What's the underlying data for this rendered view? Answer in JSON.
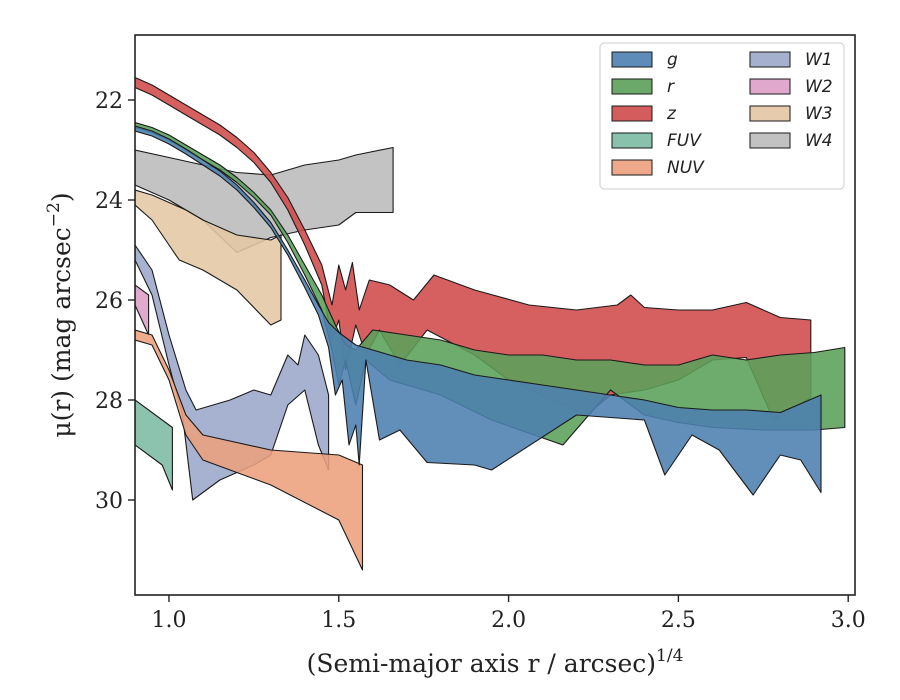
{
  "chart_data": {
    "type": "area",
    "title": "",
    "xlabel": "(Semi-major axis r / arcsec)",
    "xlabel_exponent": "1/4",
    "ylabel_prefix": "μ(r) (mag arcsec",
    "ylabel_exponent": "−2",
    "ylabel_suffix": ")",
    "xlim": [
      0.9,
      3.02
    ],
    "ylim": [
      31.9,
      20.7
    ],
    "y_inverted": true,
    "xticks": [
      1.0,
      1.5,
      2.0,
      2.5,
      3.0
    ],
    "xtick_labels": [
      "1.0",
      "1.5",
      "2.0",
      "2.5",
      "3.0"
    ],
    "yticks": [
      22,
      24,
      26,
      28,
      30
    ],
    "ytick_labels": [
      "22",
      "24",
      "26",
      "28",
      "30"
    ],
    "legend_position": "upper right",
    "legend_entries": [
      "g",
      "r",
      "z",
      "FUV",
      "NUV",
      "W1",
      "W2",
      "W3",
      "W4"
    ],
    "series": [
      {
        "name": "g",
        "color": "#4c7fb0",
        "upper": [
          [
            0.9,
            22.52
          ],
          [
            0.95,
            22.62
          ],
          [
            1.0,
            22.78
          ],
          [
            1.05,
            22.98
          ],
          [
            1.1,
            23.2
          ],
          [
            1.15,
            23.42
          ],
          [
            1.2,
            23.7
          ],
          [
            1.25,
            24.05
          ],
          [
            1.3,
            24.45
          ],
          [
            1.35,
            25.0
          ],
          [
            1.4,
            25.6
          ],
          [
            1.44,
            26.1
          ],
          [
            1.47,
            26.45
          ],
          [
            1.5,
            26.65
          ],
          [
            1.55,
            26.9
          ],
          [
            1.6,
            27.0
          ],
          [
            1.7,
            27.2
          ],
          [
            1.8,
            27.3
          ],
          [
            1.9,
            27.5
          ],
          [
            2.0,
            27.6
          ],
          [
            2.1,
            27.7
          ],
          [
            2.2,
            27.8
          ],
          [
            2.3,
            27.9
          ],
          [
            2.4,
            28.0
          ],
          [
            2.5,
            28.15
          ],
          [
            2.6,
            28.2
          ],
          [
            2.7,
            28.2
          ],
          [
            2.8,
            28.25
          ],
          [
            2.92,
            27.9
          ]
        ],
        "lower": [
          [
            0.9,
            22.62
          ],
          [
            0.95,
            22.72
          ],
          [
            1.0,
            22.88
          ],
          [
            1.05,
            23.08
          ],
          [
            1.1,
            23.3
          ],
          [
            1.15,
            23.52
          ],
          [
            1.2,
            23.8
          ],
          [
            1.25,
            24.15
          ],
          [
            1.3,
            24.55
          ],
          [
            1.35,
            25.1
          ],
          [
            1.4,
            25.75
          ],
          [
            1.44,
            26.3
          ],
          [
            1.47,
            26.95
          ],
          [
            1.49,
            27.9
          ],
          [
            1.51,
            27.6
          ],
          [
            1.53,
            28.9
          ],
          [
            1.55,
            28.5
          ],
          [
            1.56,
            29.3
          ],
          [
            1.58,
            27.2
          ],
          [
            1.62,
            28.8
          ],
          [
            1.68,
            28.6
          ],
          [
            1.76,
            29.25
          ],
          [
            1.9,
            29.3
          ],
          [
            1.95,
            29.4
          ],
          [
            2.2,
            28.3
          ],
          [
            2.4,
            28.4
          ],
          [
            2.46,
            29.5
          ],
          [
            2.54,
            28.7
          ],
          [
            2.62,
            29.0
          ],
          [
            2.72,
            29.9
          ],
          [
            2.8,
            29.1
          ],
          [
            2.86,
            29.2
          ],
          [
            2.92,
            29.85
          ]
        ]
      },
      {
        "name": "r",
        "color": "#5aa05a",
        "upper": [
          [
            0.9,
            22.45
          ],
          [
            0.95,
            22.55
          ],
          [
            1.0,
            22.7
          ],
          [
            1.05,
            22.9
          ],
          [
            1.1,
            23.1
          ],
          [
            1.15,
            23.3
          ],
          [
            1.2,
            23.55
          ],
          [
            1.25,
            23.85
          ],
          [
            1.3,
            24.2
          ],
          [
            1.35,
            24.7
          ],
          [
            1.4,
            25.3
          ],
          [
            1.45,
            25.9
          ],
          [
            1.49,
            26.5
          ],
          [
            1.52,
            26.9
          ],
          [
            1.55,
            27.0
          ],
          [
            1.6,
            26.6
          ],
          [
            1.7,
            26.7
          ],
          [
            1.8,
            26.8
          ],
          [
            1.9,
            27.0
          ],
          [
            2.0,
            27.1
          ],
          [
            2.1,
            27.1
          ],
          [
            2.2,
            27.2
          ],
          [
            2.3,
            27.2
          ],
          [
            2.4,
            27.3
          ],
          [
            2.5,
            27.3
          ],
          [
            2.6,
            27.1
          ],
          [
            2.7,
            27.2
          ],
          [
            2.8,
            27.1
          ],
          [
            2.9,
            27.05
          ],
          [
            2.99,
            26.95
          ]
        ],
        "lower": [
          [
            0.9,
            22.55
          ],
          [
            0.95,
            22.65
          ],
          [
            1.0,
            22.8
          ],
          [
            1.05,
            23.0
          ],
          [
            1.1,
            23.2
          ],
          [
            1.15,
            23.4
          ],
          [
            1.2,
            23.65
          ],
          [
            1.25,
            23.95
          ],
          [
            1.3,
            24.3
          ],
          [
            1.35,
            24.85
          ],
          [
            1.4,
            25.5
          ],
          [
            1.45,
            26.2
          ],
          [
            1.48,
            27.0
          ],
          [
            1.5,
            27.7
          ],
          [
            1.52,
            27.2
          ],
          [
            1.55,
            28.1
          ],
          [
            1.58,
            27.2
          ],
          [
            1.65,
            27.6
          ],
          [
            1.8,
            27.9
          ],
          [
            1.95,
            28.4
          ],
          [
            2.16,
            28.9
          ],
          [
            2.3,
            27.8
          ],
          [
            2.4,
            28.3
          ],
          [
            2.5,
            28.45
          ],
          [
            2.6,
            28.55
          ],
          [
            2.75,
            28.6
          ],
          [
            2.9,
            28.6
          ],
          [
            2.99,
            28.55
          ]
        ]
      },
      {
        "name": "z",
        "color": "#d04a4a",
        "upper": [
          [
            0.9,
            21.55
          ],
          [
            0.95,
            21.7
          ],
          [
            1.0,
            21.9
          ],
          [
            1.05,
            22.1
          ],
          [
            1.1,
            22.3
          ],
          [
            1.15,
            22.5
          ],
          [
            1.2,
            22.75
          ],
          [
            1.25,
            23.05
          ],
          [
            1.3,
            23.45
          ],
          [
            1.35,
            23.95
          ],
          [
            1.4,
            24.6
          ],
          [
            1.45,
            25.3
          ],
          [
            1.48,
            26.1
          ],
          [
            1.5,
            25.3
          ],
          [
            1.52,
            25.8
          ],
          [
            1.54,
            25.25
          ],
          [
            1.56,
            26.2
          ],
          [
            1.59,
            25.6
          ],
          [
            1.65,
            25.7
          ],
          [
            1.72,
            26.0
          ],
          [
            1.78,
            25.5
          ],
          [
            1.9,
            25.8
          ],
          [
            2.06,
            26.1
          ],
          [
            2.2,
            26.2
          ],
          [
            2.32,
            26.1
          ],
          [
            2.36,
            25.9
          ],
          [
            2.4,
            26.15
          ],
          [
            2.5,
            26.2
          ],
          [
            2.6,
            26.2
          ],
          [
            2.7,
            26.05
          ],
          [
            2.8,
            26.35
          ],
          [
            2.89,
            26.4
          ]
        ],
        "lower": [
          [
            0.9,
            21.75
          ],
          [
            0.95,
            21.9
          ],
          [
            1.0,
            22.1
          ],
          [
            1.05,
            22.3
          ],
          [
            1.1,
            22.5
          ],
          [
            1.15,
            22.7
          ],
          [
            1.2,
            22.95
          ],
          [
            1.25,
            23.25
          ],
          [
            1.3,
            23.65
          ],
          [
            1.35,
            24.2
          ],
          [
            1.4,
            24.9
          ],
          [
            1.45,
            25.7
          ],
          [
            1.48,
            26.8
          ],
          [
            1.5,
            26.4
          ],
          [
            1.52,
            27.4
          ],
          [
            1.55,
            26.5
          ],
          [
            1.58,
            27.1
          ],
          [
            1.62,
            26.6
          ],
          [
            1.68,
            27.3
          ],
          [
            1.76,
            26.6
          ],
          [
            1.9,
            27.1
          ],
          [
            2.0,
            27.6
          ],
          [
            2.1,
            27.9
          ],
          [
            2.23,
            28.3
          ],
          [
            2.3,
            27.9
          ],
          [
            2.4,
            27.8
          ],
          [
            2.5,
            27.6
          ],
          [
            2.6,
            27.2
          ],
          [
            2.7,
            27.15
          ],
          [
            2.78,
            28.4
          ],
          [
            2.89,
            27.95
          ]
        ]
      },
      {
        "name": "FUV",
        "color": "#7cbba3",
        "upper": [
          [
            0.9,
            28.0
          ],
          [
            1.01,
            28.55
          ]
        ],
        "lower": [
          [
            0.9,
            28.9
          ],
          [
            0.98,
            29.3
          ],
          [
            1.01,
            29.8
          ]
        ]
      },
      {
        "name": "NUV",
        "color": "#eca07d",
        "upper": [
          [
            0.9,
            26.6
          ],
          [
            0.95,
            26.7
          ],
          [
            1.0,
            27.4
          ],
          [
            1.05,
            28.3
          ],
          [
            1.1,
            28.7
          ],
          [
            1.3,
            29.0
          ],
          [
            1.5,
            29.1
          ],
          [
            1.57,
            29.3
          ]
        ],
        "lower": [
          [
            0.9,
            26.8
          ],
          [
            0.95,
            26.9
          ],
          [
            1.0,
            27.6
          ],
          [
            1.05,
            28.7
          ],
          [
            1.1,
            29.2
          ],
          [
            1.3,
            29.7
          ],
          [
            1.5,
            30.4
          ],
          [
            1.57,
            31.4
          ]
        ]
      },
      {
        "name": "W1",
        "color": "#9ba7c9",
        "upper": [
          [
            0.9,
            24.9
          ],
          [
            0.95,
            25.4
          ],
          [
            1.0,
            26.7
          ],
          [
            1.05,
            27.8
          ],
          [
            1.08,
            28.2
          ],
          [
            1.18,
            28.0
          ],
          [
            1.25,
            27.8
          ],
          [
            1.3,
            27.9
          ],
          [
            1.35,
            27.1
          ],
          [
            1.38,
            27.3
          ],
          [
            1.4,
            26.7
          ],
          [
            1.44,
            27.1
          ],
          [
            1.47,
            27.9
          ]
        ],
        "lower": [
          [
            0.9,
            25.2
          ],
          [
            0.95,
            25.9
          ],
          [
            1.0,
            27.3
          ],
          [
            1.04,
            28.3
          ],
          [
            1.07,
            30.0
          ],
          [
            1.15,
            29.6
          ],
          [
            1.25,
            29.3
          ],
          [
            1.3,
            29.1
          ],
          [
            1.35,
            28.1
          ],
          [
            1.4,
            27.8
          ],
          [
            1.44,
            28.9
          ],
          [
            1.47,
            29.4
          ]
        ]
      },
      {
        "name": "W2",
        "color": "#dc9ec6",
        "upper": [
          [
            0.9,
            25.7
          ],
          [
            0.94,
            25.9
          ]
        ],
        "lower": [
          [
            0.9,
            26.1
          ],
          [
            0.94,
            26.7
          ]
        ]
      },
      {
        "name": "W3",
        "color": "#e3c7a4",
        "upper": [
          [
            0.9,
            23.8
          ],
          [
            0.95,
            23.9
          ],
          [
            1.0,
            24.05
          ],
          [
            1.05,
            24.2
          ],
          [
            1.1,
            24.4
          ],
          [
            1.2,
            24.7
          ],
          [
            1.3,
            24.8
          ],
          [
            1.33,
            24.7
          ]
        ],
        "lower": [
          [
            0.9,
            24.1
          ],
          [
            0.95,
            24.4
          ],
          [
            1.0,
            24.9
          ],
          [
            1.03,
            25.2
          ],
          [
            1.1,
            25.4
          ],
          [
            1.2,
            25.8
          ],
          [
            1.3,
            26.5
          ],
          [
            1.33,
            26.4
          ]
        ]
      },
      {
        "name": "W4",
        "color": "#bbbbbb",
        "upper": [
          [
            0.9,
            23.0
          ],
          [
            1.0,
            23.15
          ],
          [
            1.1,
            23.3
          ],
          [
            1.2,
            23.45
          ],
          [
            1.3,
            23.5
          ],
          [
            1.4,
            23.3
          ],
          [
            1.5,
            23.2
          ],
          [
            1.55,
            23.1
          ],
          [
            1.66,
            22.95
          ]
        ],
        "lower": [
          [
            0.9,
            23.7
          ],
          [
            1.0,
            24.0
          ],
          [
            1.1,
            24.4
          ],
          [
            1.2,
            25.05
          ],
          [
            1.3,
            24.75
          ],
          [
            1.4,
            24.6
          ],
          [
            1.5,
            24.5
          ],
          [
            1.55,
            24.25
          ],
          [
            1.66,
            24.25
          ]
        ]
      }
    ]
  }
}
